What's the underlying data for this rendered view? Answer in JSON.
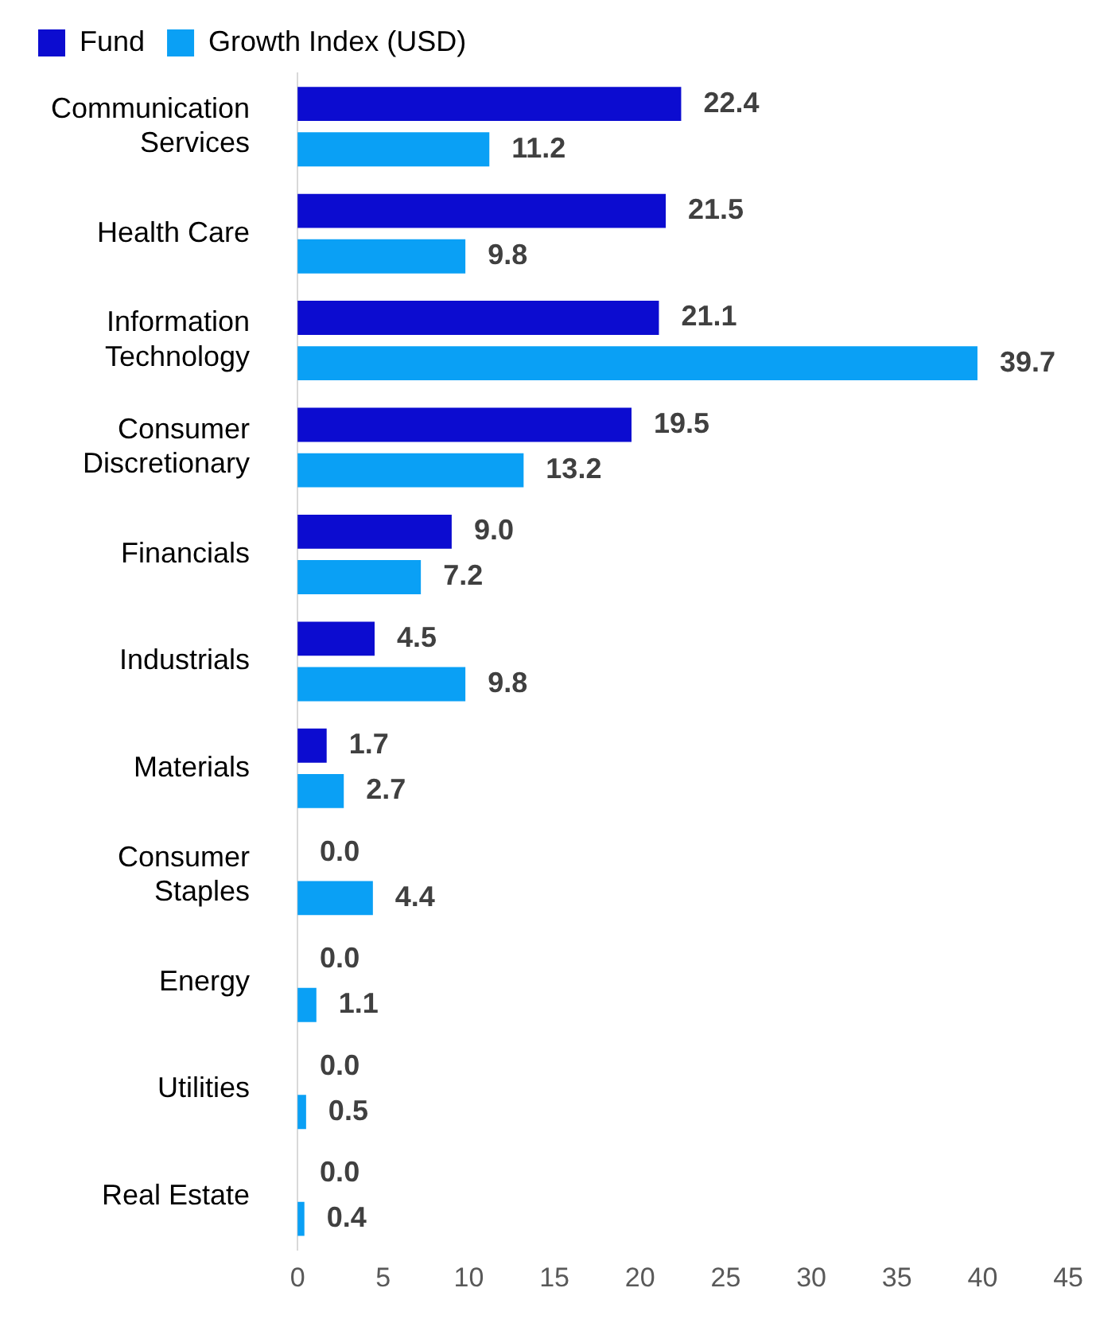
{
  "chart_data": {
    "type": "bar",
    "orientation": "horizontal",
    "categories": [
      "Communication Services",
      "Health Care",
      "Information Technology",
      "Consumer Discretionary",
      "Financials",
      "Industrials",
      "Materials",
      "Consumer Staples",
      "Energy",
      "Utilities",
      "Real Estate"
    ],
    "series": [
      {
        "name": "Fund",
        "color": "#0c0cd0",
        "values": [
          22.4,
          21.5,
          21.1,
          19.5,
          9.0,
          4.5,
          1.7,
          0.0,
          0.0,
          0.0,
          0.0
        ],
        "value_labels": [
          "22.4",
          "21.5",
          "21.1",
          "19.5",
          "9.0",
          "4.5",
          "1.7",
          "0.0",
          "0.0",
          "0.0",
          "0.0"
        ]
      },
      {
        "name": "Growth Index (USD)",
        "color": "#0aa0f5",
        "values": [
          11.2,
          9.8,
          39.7,
          13.2,
          7.2,
          9.8,
          2.7,
          4.4,
          1.1,
          0.5,
          0.4
        ],
        "value_labels": [
          "11.2",
          "9.8",
          "39.7",
          "13.2",
          "7.2",
          "9.8",
          "2.7",
          "4.4",
          "1.1",
          "0.5",
          "0.4"
        ]
      }
    ],
    "xlim": [
      0,
      45
    ],
    "xticks": [
      0,
      5,
      10,
      15,
      20,
      25,
      30,
      35,
      40,
      45
    ],
    "grid": false,
    "legend": "top left"
  }
}
